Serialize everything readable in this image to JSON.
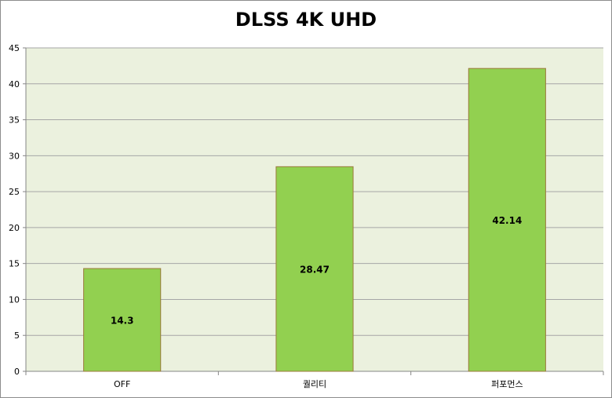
{
  "chart_data": {
    "type": "bar",
    "title": "DLSS 4K UHD",
    "categories": [
      "OFF",
      "퀄리티",
      "퍼포먼스"
    ],
    "values": [
      14.3,
      28.47,
      42.14
    ],
    "data_labels": [
      "14.3",
      "28.47",
      "42.14"
    ],
    "ylim": [
      0,
      45
    ],
    "y_ticks": [
      0,
      5,
      10,
      15,
      20,
      25,
      30,
      35,
      40,
      45
    ],
    "xlabel": "",
    "ylabel": "",
    "grid": true,
    "legend": "none"
  },
  "colors": {
    "plot_background": "#ebf1de",
    "bar_fill": "#92d050",
    "bar_border": "#9b7a3c",
    "gridline": "#a6a6a6",
    "axis": "#868686"
  }
}
